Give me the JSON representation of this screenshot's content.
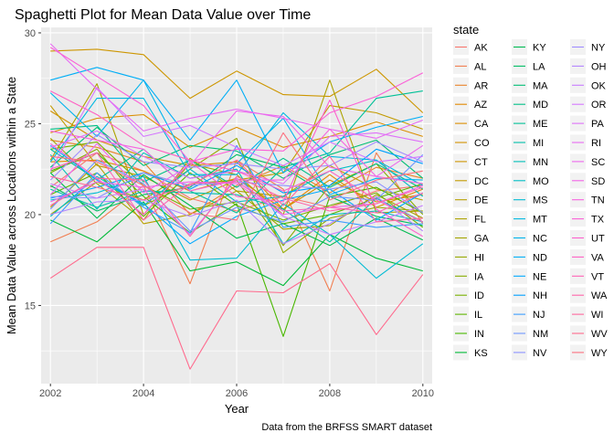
{
  "chart_data": {
    "type": "line",
    "title": "Spaghetti Plot for Mean Data Value over Time",
    "xlabel": "Year",
    "ylabel": "Mean Data Value across Locations within a State",
    "caption": "Data from the BRFSS SMART dataset",
    "legend_title": "state",
    "legend_position": "right",
    "grid": true,
    "xlim": [
      2001.8,
      2010.2
    ],
    "ylim": [
      10.7,
      30.3
    ],
    "x_ticks": [
      2002,
      2004,
      2006,
      2008,
      2010
    ],
    "x_tick_labels": [
      "2002",
      "2004",
      "2006",
      "2008",
      "2010"
    ],
    "y_ticks": [
      15,
      20,
      25,
      30
    ],
    "y_tick_labels": [
      "15",
      "20",
      "25",
      "30"
    ],
    "x": [
      2002,
      2003,
      2004,
      2005,
      2006,
      2007,
      2008,
      2009,
      2010
    ],
    "series": [
      {
        "name": "AK",
        "color": "#F8766D",
        "values": [
          21.5,
          23.4,
          22.4,
          20.9,
          20.2,
          21.0,
          20.4,
          21.3,
          21.6
        ]
      },
      {
        "name": "AL",
        "color": "#F17D4F",
        "values": [
          18.5,
          19.6,
          21.6,
          16.2,
          23.0,
          21.4,
          15.8,
          23.4,
          19.5
        ]
      },
      {
        "name": "AR",
        "color": "#E98429",
        "values": [
          24.1,
          23.7,
          22.9,
          20.0,
          21.6,
          22.7,
          21.2,
          22.6,
          22.0
        ]
      },
      {
        "name": "AZ",
        "color": "#E38900",
        "values": [
          22.9,
          23.0,
          22.4,
          21.3,
          22.0,
          20.3,
          22.2,
          20.4,
          21.4
        ]
      },
      {
        "name": "CA",
        "color": "#DB8E00",
        "values": [
          24.5,
          25.3,
          25.5,
          23.7,
          24.8,
          23.7,
          24.3,
          25.1,
          24.3
        ]
      },
      {
        "name": "CO",
        "color": "#D39200",
        "values": [
          25.7,
          24.1,
          23.2,
          22.7,
          22.9,
          20.3,
          21.9,
          20.7,
          21.1
        ]
      },
      {
        "name": "CT",
        "color": "#CD9600",
        "values": [
          29.0,
          29.1,
          28.8,
          26.4,
          27.9,
          26.6,
          26.5,
          28.0,
          25.6
        ]
      },
      {
        "name": "DC",
        "color": "#C29A00",
        "values": [
          26.0,
          22.7,
          22.1,
          20.8,
          21.9,
          22.3,
          26.0,
          25.6,
          24.7
        ]
      },
      {
        "name": "DE",
        "color": "#B89F00",
        "values": [
          20.4,
          22.8,
          19.5,
          20.0,
          21.3,
          21.0,
          22.7,
          21.4,
          20.8
        ]
      },
      {
        "name": "FL",
        "color": "#ADA200",
        "values": [
          23.0,
          27.2,
          20.0,
          22.8,
          22.2,
          20.0,
          27.4,
          20.1,
          20.2
        ]
      },
      {
        "name": "GA",
        "color": "#A3A500",
        "values": [
          24.2,
          21.7,
          19.7,
          23.1,
          21.3,
          19.2,
          19.4,
          21.1,
          19.8
        ]
      },
      {
        "name": "HI",
        "color": "#95A900",
        "values": [
          20.0,
          21.8,
          20.8,
          22.5,
          24.2,
          17.9,
          19.8,
          20.4,
          20.2
        ]
      },
      {
        "name": "IA",
        "color": "#86AC00",
        "values": [
          22.3,
          23.6,
          20.5,
          21.7,
          21.9,
          18.3,
          21.6,
          22.8,
          20.0
        ]
      },
      {
        "name": "ID",
        "color": "#78B000",
        "values": [
          23.6,
          24.0,
          21.6,
          20.3,
          20.7,
          19.7,
          20.5,
          21.2,
          19.3
        ]
      },
      {
        "name": "IL",
        "color": "#5FB400",
        "values": [
          21.1,
          22.3,
          19.9,
          22.3,
          20.5,
          19.5,
          20.0,
          20.9,
          21.7
        ]
      },
      {
        "name": "IN",
        "color": "#49B700",
        "values": [
          22.4,
          23.4,
          21.0,
          19.0,
          20.6,
          13.3,
          21.0,
          21.5,
          20.1
        ]
      },
      {
        "name": "KS",
        "color": "#00BA38",
        "values": [
          19.7,
          18.5,
          20.7,
          16.9,
          17.4,
          16.1,
          18.9,
          17.6,
          16.9
        ]
      },
      {
        "name": "KY",
        "color": "#00BB50",
        "values": [
          22.3,
          19.8,
          22.2,
          20.5,
          18.7,
          19.5,
          18.3,
          19.8,
          18.6
        ]
      },
      {
        "name": "LA",
        "color": "#00BD63",
        "values": [
          21.6,
          20.2,
          21.1,
          21.5,
          23.3,
          22.6,
          21.0,
          19.9,
          19.4
        ]
      },
      {
        "name": "MA",
        "color": "#00BF75",
        "values": [
          22.6,
          24.8,
          22.7,
          23.8,
          23.5,
          22.0,
          23.3,
          24.1,
          22.0
        ]
      },
      {
        "name": "MD",
        "color": "#00C087",
        "values": [
          24.7,
          24.9,
          21.8,
          23.0,
          21.5,
          23.1,
          21.5,
          22.8,
          21.4
        ]
      },
      {
        "name": "ME",
        "color": "#00C097",
        "values": [
          23.6,
          21.9,
          23.6,
          21.3,
          20.1,
          22.6,
          23.4,
          26.4,
          26.8
        ]
      },
      {
        "name": "MI",
        "color": "#00C0A8",
        "values": [
          21.4,
          20.4,
          21.3,
          21.2,
          21.1,
          20.3,
          18.5,
          20.9,
          19.6
        ]
      },
      {
        "name": "MN",
        "color": "#00BFB7",
        "values": [
          23.3,
          20.3,
          23.4,
          22.0,
          22.5,
          18.4,
          20.0,
          20.2,
          19.6
        ]
      },
      {
        "name": "MO",
        "color": "#00BDC5",
        "values": [
          19.9,
          22.1,
          20.5,
          22.5,
          20.7,
          21.0,
          22.4,
          23.0,
          21.0
        ]
      },
      {
        "name": "MS",
        "color": "#00BBD3",
        "values": [
          20.8,
          21.2,
          22.1,
          17.5,
          17.6,
          20.6,
          18.9,
          16.5,
          18.4
        ]
      },
      {
        "name": "MT",
        "color": "#00B7E1",
        "values": [
          22.9,
          26.4,
          26.4,
          22.2,
          22.2,
          25.6,
          23.2,
          23.0,
          21.6
        ]
      },
      {
        "name": "NC",
        "color": "#00B3EC",
        "values": [
          26.7,
          24.3,
          27.4,
          22.6,
          22.8,
          25.3,
          21.1,
          22.0,
          21.9
        ]
      },
      {
        "name": "ND",
        "color": "#00AEF6",
        "values": [
          27.4,
          28.1,
          27.4,
          24.1,
          27.4,
          22.3,
          24.0,
          24.8,
          25.4
        ]
      },
      {
        "name": "NE",
        "color": "#00A9FF",
        "values": [
          23.8,
          21.9,
          20.6,
          18.4,
          19.9,
          20.8,
          21.4,
          19.7,
          21.2
        ]
      },
      {
        "name": "NH",
        "color": "#00A0FF",
        "values": [
          20.9,
          21.5,
          22.3,
          21.4,
          22.7,
          21.2,
          21.6,
          23.6,
          22.8
        ]
      },
      {
        "name": "NJ",
        "color": "#3D9CFF",
        "values": [
          19.5,
          22.3,
          20.4,
          19.0,
          23.8,
          19.3,
          19.7,
          19.3,
          19.5
        ]
      },
      {
        "name": "NM",
        "color": "#6E97FF",
        "values": [
          20.3,
          23.0,
          21.7,
          19.1,
          20.4,
          19.6,
          21.0,
          20.8,
          23.3
        ]
      },
      {
        "name": "NV",
        "color": "#8D92FF",
        "values": [
          21.0,
          20.9,
          22.3,
          21.6,
          21.8,
          21.6,
          21.4,
          21.8,
          20.1
        ]
      },
      {
        "name": "NY",
        "color": "#9F8CFF",
        "values": [
          21.9,
          24.4,
          22.9,
          22.6,
          22.8,
          22.5,
          22.7,
          24.0,
          22.9
        ]
      },
      {
        "name": "OH",
        "color": "#B385FF",
        "values": [
          20.0,
          20.7,
          20.8,
          19.9,
          20.8,
          18.4,
          19.5,
          21.0,
          19.1
        ]
      },
      {
        "name": "OK",
        "color": "#C77CFF",
        "values": [
          21.7,
          20.9,
          21.4,
          18.9,
          22.0,
          19.9,
          18.9,
          19.6,
          20.5
        ]
      },
      {
        "name": "OR",
        "color": "#D477FF",
        "values": [
          22.4,
          27.0,
          24.3,
          24.9,
          23.7,
          22.7,
          24.0,
          22.9,
          23.2
        ]
      },
      {
        "name": "PA",
        "color": "#DE71F9",
        "values": [
          23.7,
          24.6,
          23.2,
          22.0,
          22.4,
          21.7,
          24.3,
          24.5,
          24.0
        ]
      },
      {
        "name": "RI",
        "color": "#E76BF3",
        "values": [
          29.4,
          26.9,
          24.6,
          25.3,
          25.8,
          25.3,
          24.7,
          24.2,
          25.2
        ]
      },
      {
        "name": "SC",
        "color": "#ED68ED",
        "values": [
          21.1,
          23.9,
          21.2,
          22.7,
          25.7,
          25.4,
          22.6,
          22.1,
          23.8
        ]
      },
      {
        "name": "SD",
        "color": "#F265E7",
        "values": [
          20.7,
          21.8,
          21.5,
          21.8,
          21.7,
          20.0,
          20.4,
          20.6,
          21.6
        ]
      },
      {
        "name": "TN",
        "color": "#F763E0",
        "values": [
          24.6,
          24.1,
          23.6,
          21.3,
          21.9,
          21.9,
          24.7,
          22.1,
          21.7
        ]
      },
      {
        "name": "TX",
        "color": "#FB61D7",
        "values": [
          29.2,
          27.6,
          26.0,
          22.9,
          23.6,
          23.5,
          25.6,
          26.5,
          27.8
        ]
      },
      {
        "name": "UT",
        "color": "#FD61CD",
        "values": [
          23.9,
          22.0,
          20.0,
          22.9,
          21.0,
          20.7,
          26.3,
          20.3,
          18.8
        ]
      },
      {
        "name": "VA",
        "color": "#FF61C3",
        "values": [
          26.8,
          25.5,
          23.8,
          23.0,
          22.4,
          21.3,
          22.4,
          20.8,
          19.6
        ]
      },
      {
        "name": "VT",
        "color": "#FF63B6",
        "values": [
          22.5,
          23.4,
          19.7,
          21.7,
          21.8,
          20.2,
          20.4,
          20.1,
          21.2
        ]
      },
      {
        "name": "WA",
        "color": "#FF65AA",
        "values": [
          20.5,
          22.0,
          21.9,
          18.8,
          22.1,
          20.9,
          20.2,
          20.6,
          21.5
        ]
      },
      {
        "name": "WI",
        "color": "#FF689C",
        "values": [
          22.1,
          21.5,
          20.8,
          21.6,
          23.0,
          20.5,
          23.2,
          19.6,
          19.8
        ]
      },
      {
        "name": "WV",
        "color": "#FF6A8D",
        "values": [
          16.5,
          18.2,
          18.2,
          11.5,
          15.8,
          15.7,
          17.3,
          13.4,
          16.7
        ]
      },
      {
        "name": "WY",
        "color": "#FC717F",
        "values": [
          23.2,
          22.9,
          21.6,
          20.1,
          19.7,
          24.5,
          20.8,
          21.9,
          22.4
        ]
      }
    ]
  }
}
